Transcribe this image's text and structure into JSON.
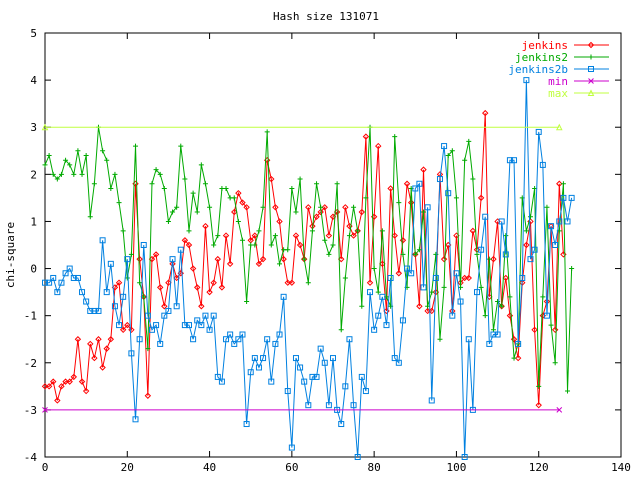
{
  "chart_data": {
    "type": "line",
    "title": "Hash size 131071",
    "ylabel": "chi-square",
    "xlabel": "",
    "xlim": [
      0,
      140
    ],
    "ylim": [
      -4,
      5
    ],
    "x_ticks": [
      "0",
      "20",
      "40",
      "60",
      "80",
      "100",
      "120",
      "140"
    ],
    "y_ticks": [
      "-4",
      "-3",
      "-2",
      "-1",
      "0",
      "1",
      "2",
      "3",
      "4",
      "5"
    ],
    "legend_position": "top-right",
    "grid": false,
    "series": [
      {
        "name": "jenkins",
        "color": "#ff0000",
        "marker": "diamond",
        "values": [
          -2.5,
          -2.5,
          -2.4,
          -2.8,
          -2.5,
          -2.4,
          -2.4,
          -2.3,
          -1.5,
          -2.4,
          -2.6,
          -1.6,
          -1.9,
          -1.5,
          -2.1,
          -1.7,
          -1.5,
          -0.4,
          -0.3,
          -1.3,
          -1.2,
          -1.3,
          1.8,
          0.2,
          -0.6,
          -2.7,
          0.2,
          0.3,
          -0.4,
          -0.8,
          -0.3,
          0.1,
          -0.2,
          -0.1,
          0.6,
          0.5,
          0.0,
          -0.4,
          -0.8,
          0.9,
          -0.5,
          -0.3,
          0.2,
          -0.4,
          0.7,
          0.1,
          1.2,
          1.6,
          1.4,
          1.3,
          0.6,
          0.7,
          0.1,
          0.2,
          2.3,
          1.9,
          1.3,
          1.0,
          0.2,
          -0.3,
          -0.3,
          0.7,
          0.5,
          0.2,
          1.3,
          0.9,
          1.1,
          1.2,
          1.3,
          0.7,
          1.1,
          1.2,
          0.2,
          1.3,
          0.9,
          0.7,
          0.8,
          1.2,
          2.8,
          -0.3,
          1.1,
          2.6,
          0.1,
          -0.9,
          1.7,
          0.7,
          -0.1,
          0.6,
          1.8,
          1.4,
          0.3,
          -0.8,
          2.1,
          -0.9,
          -0.9,
          -0.5,
          2.0,
          0.2,
          0.5,
          -0.9,
          0.7,
          -0.3,
          -0.2,
          -0.2,
          0.8,
          0.4,
          1.5,
          3.3,
          -0.6,
          0.2,
          1.0,
          -0.8,
          -0.2,
          -1.0,
          -1.5,
          -1.9,
          -0.3,
          0.5,
          1.0,
          -1.3,
          -2.9,
          -1.0,
          -0.7,
          0.9,
          -1.3,
          1.8,
          0.3
        ]
      },
      {
        "name": "jenkins2",
        "color": "#00aa00",
        "marker": "plus",
        "values": [
          2.2,
          2.4,
          2.0,
          1.9,
          2.0,
          2.3,
          2.2,
          2.0,
          2.5,
          2.0,
          2.4,
          1.1,
          1.8,
          3.0,
          2.5,
          2.3,
          1.7,
          2.0,
          1.4,
          0.8,
          -0.2,
          0.3,
          2.6,
          -0.3,
          -0.6,
          -1.7,
          1.8,
          2.1,
          2.0,
          1.7,
          1.0,
          1.2,
          1.3,
          2.6,
          1.9,
          0.8,
          1.6,
          1.2,
          2.2,
          1.8,
          1.3,
          0.5,
          0.7,
          1.7,
          1.7,
          1.5,
          1.5,
          1.0,
          0.6,
          -0.7,
          0.5,
          0.5,
          0.8,
          1.3,
          2.9,
          0.5,
          0.7,
          0.1,
          0.4,
          0.4,
          1.7,
          1.2,
          1.9,
          0.2,
          -0.3,
          0.8,
          1.8,
          1.3,
          0.6,
          0.3,
          0.5,
          1.8,
          -1.3,
          -0.2,
          0.7,
          1.3,
          0.8,
          -0.8,
          1.5,
          3.0,
          0.0,
          -0.5,
          0.8,
          -0.6,
          -0.8,
          2.8,
          1.4,
          0.3,
          -0.4,
          1.7,
          0.3,
          0.4,
          1.2,
          -0.8,
          -0.5,
          0.3,
          -1.5,
          -0.4,
          2.4,
          2.5,
          1.5,
          -0.4,
          2.3,
          2.7,
          1.9,
          0.3,
          -0.4,
          -1.0,
          0.2,
          -1.3,
          -0.7,
          -0.8,
          0.7,
          -0.6,
          -1.9,
          -1.6,
          1.5,
          0.8,
          1.1,
          1.7,
          -2.5,
          -0.6,
          1.3,
          -1.2,
          -2.0,
          0.8,
          1.8,
          -2.6,
          0.0
        ]
      },
      {
        "name": "jenkins2b",
        "color": "#0080e0",
        "marker": "square",
        "values": [
          -0.3,
          -0.3,
          -0.2,
          -0.5,
          -0.3,
          -0.1,
          0.0,
          -0.2,
          -0.2,
          -0.5,
          -0.7,
          -0.9,
          -0.9,
          -0.9,
          0.6,
          -0.5,
          0.1,
          -0.8,
          -1.2,
          -0.6,
          0.2,
          -1.8,
          -3.2,
          -1.5,
          0.5,
          -1.0,
          -1.3,
          -1.2,
          -1.6,
          -1.0,
          -0.9,
          0.2,
          -0.8,
          0.4,
          -1.2,
          -1.2,
          -1.5,
          -1.1,
          -1.2,
          -1.0,
          -1.3,
          -1.0,
          -2.3,
          -2.4,
          -1.5,
          -1.4,
          -1.6,
          -1.5,
          -1.4,
          -3.3,
          -2.2,
          -1.9,
          -2.1,
          -1.9,
          -1.5,
          -2.4,
          -1.6,
          -1.4,
          -0.6,
          -2.6,
          -3.8,
          -1.9,
          -2.1,
          -2.4,
          -2.9,
          -2.3,
          -2.3,
          -1.7,
          -2.0,
          -2.9,
          -1.9,
          -3.0,
          -3.3,
          -2.5,
          -1.5,
          -2.9,
          -4.0,
          -2.3,
          -2.6,
          -0.5,
          -1.3,
          -1.0,
          -0.6,
          -1.2,
          -0.2,
          -1.9,
          -2.0,
          -1.1,
          0.0,
          -0.1,
          1.7,
          1.8,
          -0.4,
          1.3,
          -2.8,
          -0.2,
          1.9,
          2.6,
          1.6,
          -1.0,
          -0.1,
          -0.7,
          -4.0,
          -1.5,
          -3.0,
          -0.5,
          0.4,
          1.1,
          -1.6,
          -1.4,
          -1.4,
          1.0,
          0.3,
          2.3,
          2.3,
          -1.6,
          -0.2,
          4.0,
          0.2,
          0.4,
          2.9,
          2.2,
          -1.0,
          0.9,
          0.5,
          1.0,
          1.5,
          1.0,
          1.5
        ]
      },
      {
        "name": "min",
        "color": "#cc00cc",
        "marker": "cross",
        "values": [
          -3,
          -3
        ]
      },
      {
        "name": "max",
        "color": "#c0ff40",
        "marker": "triangle",
        "values": [
          3,
          3
        ]
      }
    ]
  }
}
